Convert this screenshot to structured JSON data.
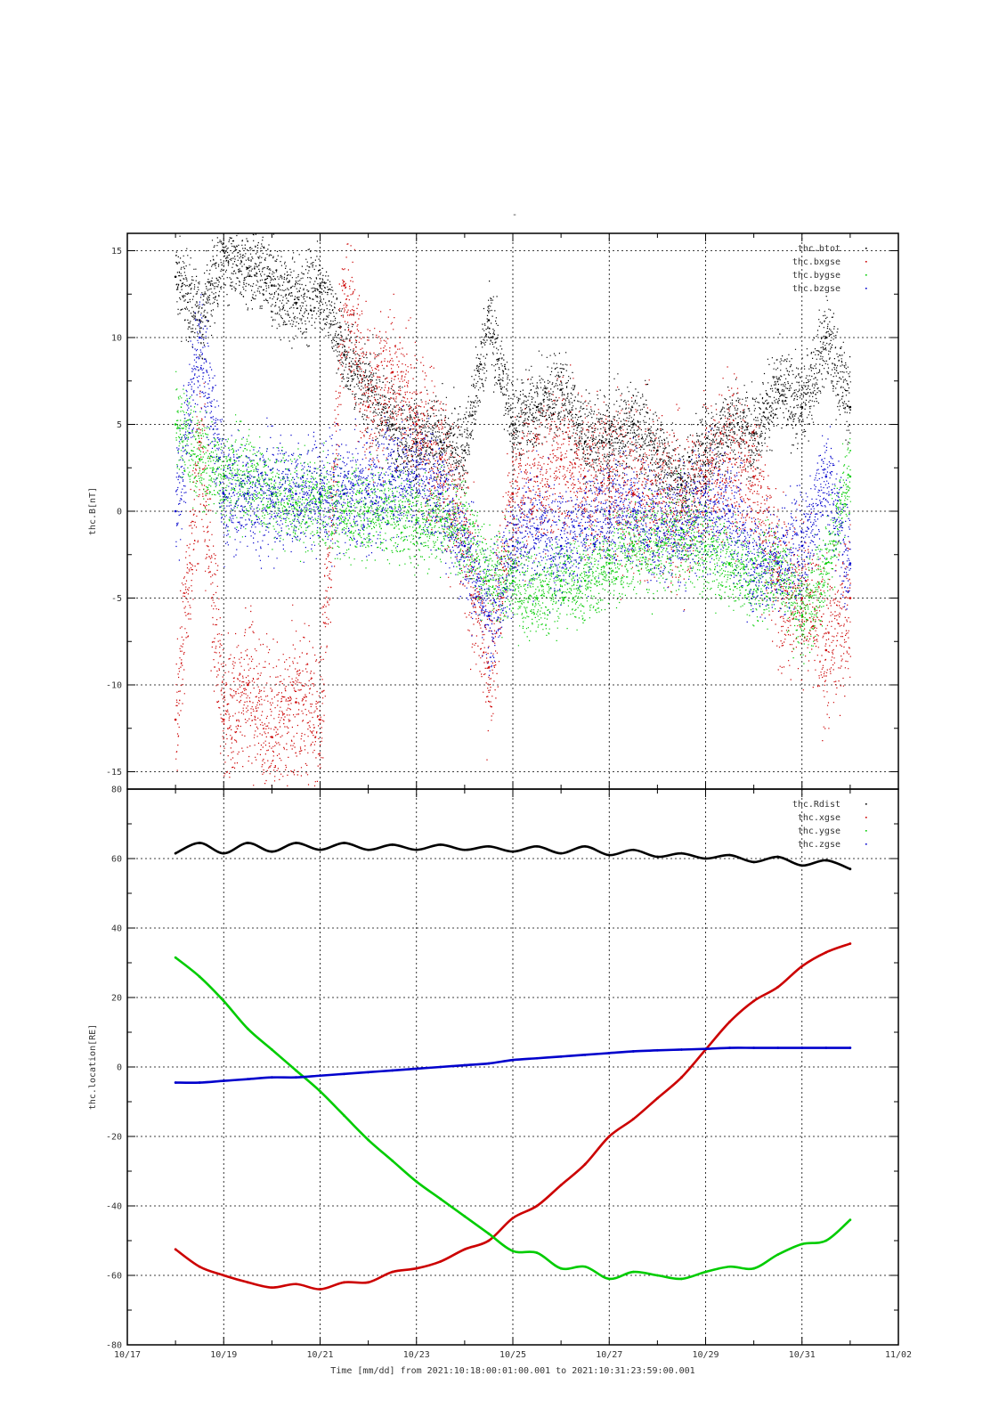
{
  "title": "-",
  "xlabel": "Time [mm/dd]  from 2021:10:18:00:01:00.001  to  2021:10:31:23:59:00.001",
  "colors": {
    "btot": "#000000",
    "x": "#cc0000",
    "y": "#00cc00",
    "z": "#0000cc"
  },
  "chart_data": [
    {
      "type": "scatter",
      "ylabel": "thc.B[nT]",
      "xlim": [
        "10/17",
        "11/02"
      ],
      "ylim": [
        -16,
        16
      ],
      "yticks": [
        -15,
        -10,
        -5,
        0,
        5,
        10,
        15
      ],
      "grid": true,
      "legend_position": "top-right",
      "x_tick_labels": [
        "10/17",
        "10/19",
        "10/21",
        "10/23",
        "10/25",
        "10/27",
        "10/29",
        "10/31",
        "11/02"
      ],
      "series": [
        {
          "name": "thc.btot",
          "color": "#000000",
          "x": [
            "10/18 00:00",
            "10/18 12:00",
            "10/19 00:00",
            "10/19 12:00",
            "10/20 00:00",
            "10/20 12:00",
            "10/21 00:00",
            "10/21 12:00",
            "10/22 00:00",
            "10/22 12:00",
            "10/23 00:00",
            "10/23 12:00",
            "10/24 00:00",
            "10/24 12:00",
            "10/25 00:00",
            "10/25 12:00",
            "10/26 00:00",
            "10/26 12:00",
            "10/27 00:00",
            "10/27 12:00",
            "10/28 00:00",
            "10/28 12:00",
            "10/29 00:00",
            "10/29 12:00",
            "10/30 00:00",
            "10/30 12:00",
            "10/31 00:00",
            "10/31 12:00",
            "11/01 00:00"
          ],
          "y": [
            13.5,
            11,
            15,
            14,
            13,
            12,
            13,
            9,
            7,
            5,
            4,
            4,
            3.5,
            11,
            5,
            6,
            7,
            4,
            4,
            5,
            3.5,
            1.5,
            3.5,
            5,
            4.5,
            7,
            6,
            10,
            6
          ]
        },
        {
          "name": "thc.bxgse",
          "color": "#cc0000",
          "x": [
            "10/18 00:00",
            "10/18 12:00",
            "10/19 00:00",
            "10/19 12:00",
            "10/20 00:00",
            "10/20 12:00",
            "10/21 00:00",
            "10/21 12:00",
            "10/22 00:00",
            "10/22 12:00",
            "10/23 00:00",
            "10/23 12:00",
            "10/24 00:00",
            "10/24 12:00",
            "10/25 00:00",
            "10/25 12:00",
            "10/26 00:00",
            "10/26 12:00",
            "10/27 00:00",
            "10/27 12:00",
            "10/28 00:00",
            "10/28 12:00",
            "10/29 00:00",
            "10/29 12:00",
            "10/30 00:00",
            "10/30 12:00",
            "10/31 00:00",
            "10/31 12:00",
            "11/01 00:00"
          ],
          "y": [
            -12,
            4,
            -12,
            -10,
            -13,
            -11,
            -12,
            13,
            6,
            8,
            5,
            3,
            -2,
            -9,
            1,
            2,
            3,
            2,
            2,
            1,
            1,
            0,
            2,
            3,
            2,
            -4,
            -5,
            -8,
            -5
          ]
        },
        {
          "name": "thc.bygse",
          "color": "#00cc00",
          "x": [
            "10/18 00:00",
            "10/18 12:00",
            "10/19 00:00",
            "10/19 12:00",
            "10/20 00:00",
            "10/20 12:00",
            "10/21 00:00",
            "10/21 12:00",
            "10/22 00:00",
            "10/22 12:00",
            "10/23 00:00",
            "10/23 12:00",
            "10/24 00:00",
            "10/24 12:00",
            "10/25 00:00",
            "10/25 12:00",
            "10/26 00:00",
            "10/26 12:00",
            "10/27 00:00",
            "10/27 12:00",
            "10/28 00:00",
            "10/28 12:00",
            "10/29 00:00",
            "10/29 12:00",
            "10/30 00:00",
            "10/30 12:00",
            "10/31 00:00",
            "10/31 12:00",
            "11/01 00:00"
          ],
          "y": [
            5,
            3,
            2,
            2,
            1,
            0.5,
            0.5,
            0,
            0,
            0,
            -0.5,
            -0.5,
            -1,
            -4,
            -4,
            -5,
            -4,
            -4,
            -3,
            -2,
            -2,
            -1.5,
            -2,
            -3,
            -4,
            -3,
            -6,
            -3,
            2
          ]
        },
        {
          "name": "thc.bzgse",
          "color": "#0000cc",
          "x": [
            "10/18 00:00",
            "10/18 12:00",
            "10/19 00:00",
            "10/19 12:00",
            "10/20 00:00",
            "10/20 12:00",
            "10/21 00:00",
            "10/21 12:00",
            "10/22 00:00",
            "10/22 12:00",
            "10/23 00:00",
            "10/23 12:00",
            "10/24 00:00",
            "10/24 12:00",
            "10/25 00:00",
            "10/25 12:00",
            "10/26 00:00",
            "10/26 12:00",
            "10/27 00:00",
            "10/27 12:00",
            "10/28 00:00",
            "10/28 12:00",
            "10/29 00:00",
            "10/29 12:00",
            "10/30 00:00",
            "10/30 12:00",
            "10/31 00:00",
            "10/31 12:00",
            "11/01 00:00"
          ],
          "y": [
            0,
            10,
            1,
            1,
            1,
            1,
            1,
            1,
            1,
            2,
            2,
            1,
            -2,
            -6,
            -2,
            -1,
            -2,
            -1,
            0,
            0,
            -1,
            -1,
            0,
            0,
            -3,
            -3,
            -2,
            2,
            -3
          ]
        }
      ]
    },
    {
      "type": "line",
      "ylabel": "thc.location[RE]",
      "xlim": [
        "10/17",
        "11/02"
      ],
      "ylim": [
        -80,
        80
      ],
      "yticks": [
        -80,
        -60,
        -40,
        -20,
        0,
        20,
        40,
        60,
        80
      ],
      "grid": true,
      "legend_position": "top-right",
      "x_tick_labels": [
        "10/17",
        "10/19",
        "10/21",
        "10/23",
        "10/25",
        "10/27",
        "10/29",
        "10/31",
        "11/02"
      ],
      "series": [
        {
          "name": "thc.Rdist",
          "color": "#000000",
          "x": [
            "10/18 00:00",
            "10/18 12:00",
            "10/19 00:00",
            "10/19 12:00",
            "10/20 00:00",
            "10/20 12:00",
            "10/21 00:00",
            "10/21 12:00",
            "10/22 00:00",
            "10/22 12:00",
            "10/23 00:00",
            "10/23 12:00",
            "10/24 00:00",
            "10/24 12:00",
            "10/25 00:00",
            "10/25 12:00",
            "10/26 00:00",
            "10/26 12:00",
            "10/27 00:00",
            "10/27 12:00",
            "10/28 00:00",
            "10/28 12:00",
            "10/29 00:00",
            "10/29 12:00",
            "10/30 00:00",
            "10/30 12:00",
            "10/31 00:00",
            "10/31 12:00",
            "11/01 00:00"
          ],
          "y": [
            61.5,
            64.5,
            61.5,
            64.5,
            62,
            64.5,
            62.5,
            64.5,
            62.5,
            64,
            62.5,
            64,
            62.5,
            63.5,
            62,
            63.5,
            61.5,
            63.5,
            61,
            62.5,
            60.5,
            61.5,
            60,
            61,
            59,
            60.5,
            58,
            59.5,
            57
          ]
        },
        {
          "name": "thc.xgse",
          "color": "#cc0000",
          "x": [
            "10/18 00:00",
            "10/18 12:00",
            "10/19 00:00",
            "10/19 12:00",
            "10/20 00:00",
            "10/20 12:00",
            "10/21 00:00",
            "10/21 12:00",
            "10/22 00:00",
            "10/22 12:00",
            "10/23 00:00",
            "10/23 12:00",
            "10/24 00:00",
            "10/24 12:00",
            "10/25 00:00",
            "10/25 12:00",
            "10/26 00:00",
            "10/26 12:00",
            "10/27 00:00",
            "10/27 12:00",
            "10/28 00:00",
            "10/28 12:00",
            "10/29 00:00",
            "10/29 12:00",
            "10/30 00:00",
            "10/30 12:00",
            "10/31 00:00",
            "10/31 12:00",
            "11/01 00:00"
          ],
          "y": [
            -52.5,
            -57.5,
            -60,
            -62,
            -63.5,
            -62.5,
            -64,
            -62,
            -62,
            -59,
            -58,
            -56,
            -52.5,
            -50,
            -43.5,
            -40,
            -34,
            -28,
            -20,
            -15,
            -9,
            -3,
            5,
            13,
            19,
            23,
            29,
            33,
            35.5
          ]
        },
        {
          "name": "thc.ygse",
          "color": "#00cc00",
          "x": [
            "10/18 00:00",
            "10/18 12:00",
            "10/19 00:00",
            "10/19 12:00",
            "10/20 00:00",
            "10/20 12:00",
            "10/21 00:00",
            "10/21 12:00",
            "10/22 00:00",
            "10/22 12:00",
            "10/23 00:00",
            "10/23 12:00",
            "10/24 00:00",
            "10/24 12:00",
            "10/25 00:00",
            "10/25 12:00",
            "10/26 00:00",
            "10/26 12:00",
            "10/27 00:00",
            "10/27 12:00",
            "10/28 00:00",
            "10/28 12:00",
            "10/29 00:00",
            "10/29 12:00",
            "10/30 00:00",
            "10/30 12:00",
            "10/31 00:00",
            "10/31 12:00",
            "11/01 00:00"
          ],
          "y": [
            31.5,
            26,
            19,
            11,
            5,
            -1,
            -7,
            -14,
            -21,
            -27,
            -33,
            -38,
            -43,
            -48,
            -53,
            -53.5,
            -58,
            -57.5,
            -61,
            -59,
            -60,
            -61,
            -59,
            -57.5,
            -58,
            -54,
            -51,
            -50,
            -44
          ]
        },
        {
          "name": "thc.zgse",
          "color": "#0000cc",
          "x": [
            "10/18 00:00",
            "10/18 12:00",
            "10/19 00:00",
            "10/19 12:00",
            "10/20 00:00",
            "10/20 12:00",
            "10/21 00:00",
            "10/21 12:00",
            "10/22 00:00",
            "10/22 12:00",
            "10/23 00:00",
            "10/23 12:00",
            "10/24 00:00",
            "10/24 12:00",
            "10/25 00:00",
            "10/25 12:00",
            "10/26 00:00",
            "10/26 12:00",
            "10/27 00:00",
            "10/27 12:00",
            "10/28 00:00",
            "10/28 12:00",
            "10/29 00:00",
            "10/29 12:00",
            "10/30 00:00",
            "10/30 12:00",
            "10/31 00:00",
            "10/31 12:00",
            "11/01 00:00"
          ],
          "y": [
            -4.5,
            -4.5,
            -4,
            -3.5,
            -3,
            -3,
            -2.5,
            -2,
            -1.5,
            -1,
            -0.5,
            0,
            0.5,
            1,
            2,
            2.5,
            3,
            3.5,
            4,
            4.5,
            4.8,
            5,
            5.2,
            5.5,
            5.5,
            5.5,
            5.5,
            5.5,
            5.5
          ]
        }
      ]
    }
  ]
}
